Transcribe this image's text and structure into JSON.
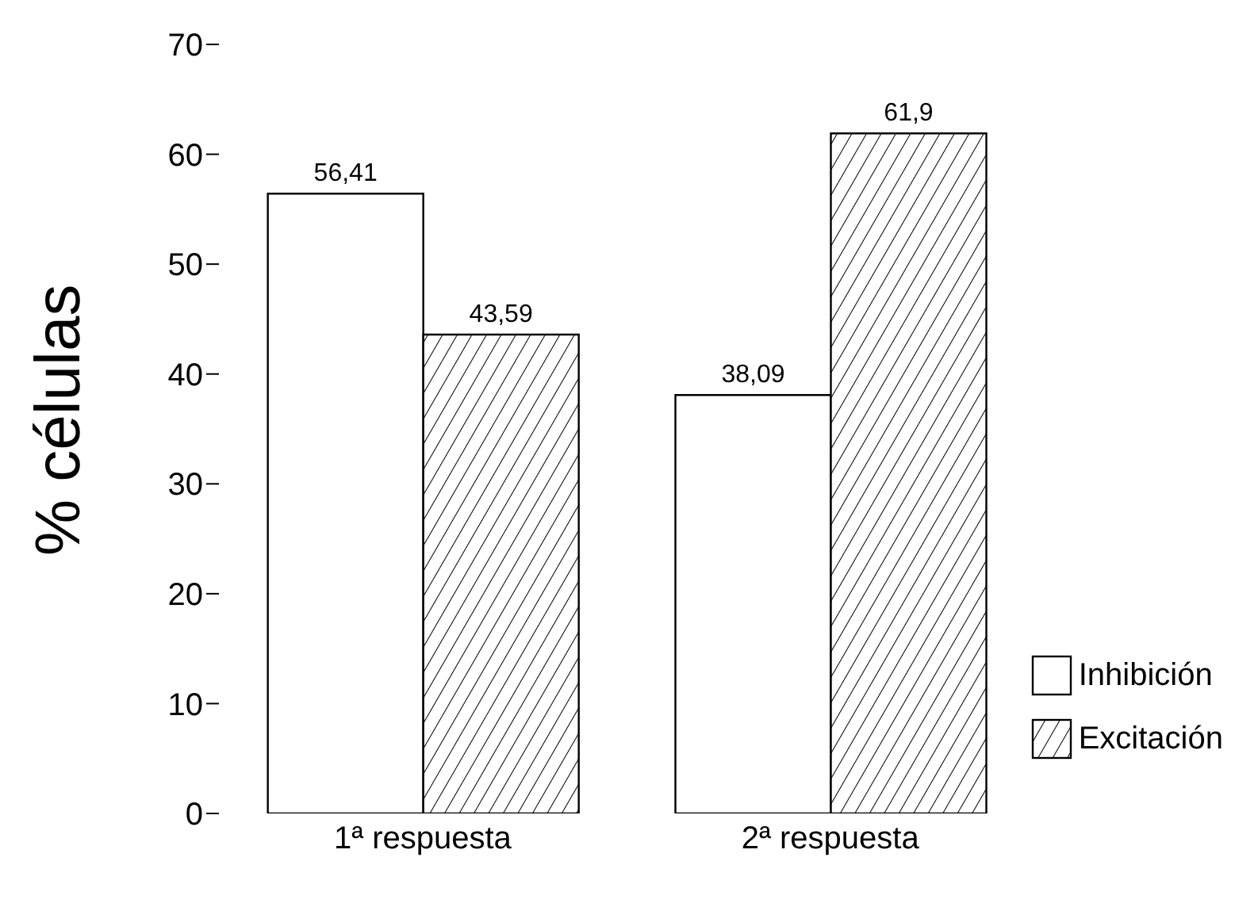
{
  "chart_data": {
    "type": "bar",
    "ylabel": "% células",
    "categories": [
      "1ª respuesta",
      "2ª respuesta"
    ],
    "series": [
      {
        "name": "Inhibición",
        "color": "#ffffff",
        "values": [
          56.41,
          38.09
        ],
        "value_labels": [
          "56,41",
          "38,09"
        ]
      },
      {
        "name": "Excitación",
        "color": "#000000",
        "values": [
          43.59,
          61.9
        ],
        "value_labels": [
          "43,59",
          "61,9"
        ]
      }
    ],
    "ylim": [
      0,
      70
    ],
    "yticks": [
      0,
      10,
      20,
      30,
      40,
      50,
      60,
      70
    ],
    "legend": "bottom right"
  }
}
